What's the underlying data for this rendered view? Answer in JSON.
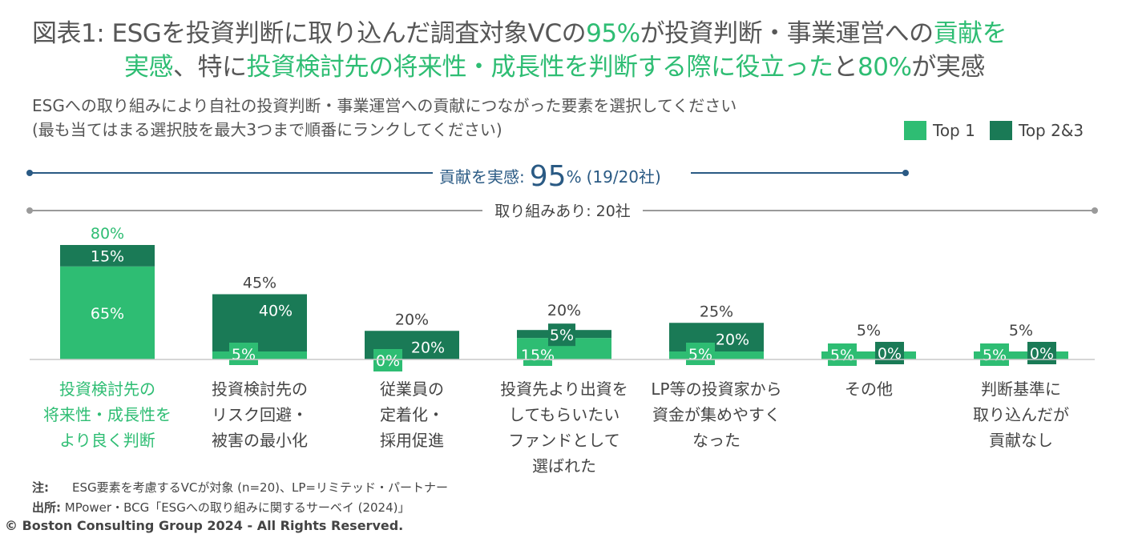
{
  "title": {
    "line1_a": "図表1: ESGを投資判断に取り込んだ調査対象VCの",
    "line1_pct": "95%",
    "line1_b": "が投資判断・事業運営への",
    "line1_c": "貢献を",
    "line2_a": "実感",
    "line2_b": "、特に",
    "line2_c": "投資検討先の将来性・成長性を判断する際に役立った",
    "line2_d": "と",
    "line2_pct": "80%",
    "line2_e": "が実感"
  },
  "question": {
    "line1": "ESGへの取り組みにより自社の投資判断・事業運営への貢献につながった要素を選択してください",
    "line2": "(最も当てはまる選択肢を最大3つまで順番にランクしてください)"
  },
  "legend": {
    "top1": "Top 1",
    "top23": "Top 2&3"
  },
  "bracket_contribution": {
    "label": "貢献を実感:",
    "pct": "95",
    "pct_unit": "%",
    "detail": "(19/20社)"
  },
  "bracket_respondents": {
    "label": "取り組みあり: 20社"
  },
  "colors": {
    "top1": "#2ebd73",
    "top23": "#1a7a56",
    "accent_blue": "#2a5a84",
    "baseline": "#c8c8c8"
  },
  "chart_data": {
    "type": "bar",
    "stacked": true,
    "categories": [
      [
        "投資検討先の",
        "将来性・成長性を",
        "より良く判断"
      ],
      [
        "投資検討先の",
        "リスク回避・",
        "被害の最小化"
      ],
      [
        "従業員の",
        "定着化・",
        "採用促進"
      ],
      [
        "投資先より出資を",
        "してもらいたい",
        "ファンドとして",
        "選ばれた"
      ],
      [
        "LP等の投資家から",
        "資金が集めやすく",
        "なった"
      ],
      [
        "その他"
      ],
      [
        "判断基準に",
        "取り込んだが",
        "貢献なし"
      ]
    ],
    "series": [
      {
        "name": "Top 1",
        "values": [
          65,
          5,
          0,
          15,
          5,
          5,
          5
        ],
        "labels": [
          "65%",
          "5%",
          "0%",
          "15%",
          "5%",
          "5%",
          "5%"
        ]
      },
      {
        "name": "Top 2&3",
        "values": [
          15,
          40,
          20,
          5,
          20,
          0,
          0
        ],
        "labels": [
          "15%",
          "40%",
          "20%",
          "5%",
          "20%",
          "0%",
          "0%"
        ]
      }
    ],
    "totals": [
      "80%",
      "45%",
      "20%",
      "20%",
      "25%",
      "5%",
      "5%"
    ],
    "highlight_index": 0,
    "ylim": [
      0,
      80
    ]
  },
  "notes": {
    "note_label": "注:",
    "note_text": "ESG要素を考慮するVCが対象 (n=20)、LP=リミテッド・パートナー",
    "source_label": "出所:",
    "source_text": "MPower・BCG「ESGへの取り組みに関するサーベイ (2024)」",
    "copyright": "© Boston Consulting Group 2024 - All Rights Reserved."
  }
}
